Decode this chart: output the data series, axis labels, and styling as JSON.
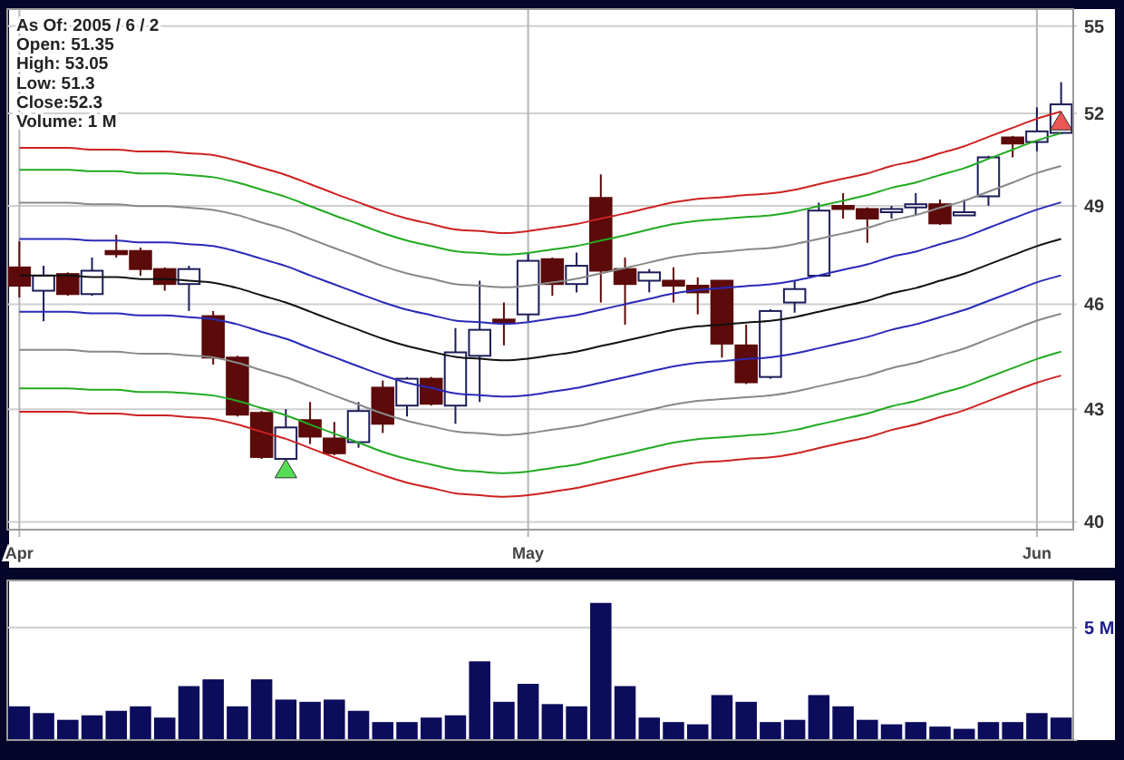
{
  "chart_data": [
    {
      "type": "candlestick",
      "log": "y",
      "grid": true,
      "annotations": [
        "As Of: 2005 / 6 / 2",
        "Open: 51.35",
        "High: 53.05",
        "Low: 51.3",
        "Close:52.3",
        "Volume: 1 M"
      ],
      "categories": [
        "Apr",
        null,
        null,
        null,
        null,
        null,
        null,
        null,
        null,
        null,
        null,
        null,
        null,
        null,
        null,
        null,
        null,
        null,
        null,
        null,
        null,
        "May",
        null,
        null,
        null,
        null,
        null,
        null,
        null,
        null,
        null,
        null,
        null,
        null,
        null,
        null,
        null,
        null,
        null,
        null,
        null,
        null,
        "Jun",
        null
      ],
      "ylim": [
        39.8,
        55.6
      ],
      "yticks": [
        40,
        43,
        46,
        49,
        52,
        55
      ],
      "ohlc": [
        [
          47.1,
          47.9,
          46.2,
          46.55
        ],
        [
          46.4,
          47.15,
          45.5,
          46.85
        ],
        [
          46.9,
          46.95,
          46.25,
          46.3
        ],
        [
          46.3,
          47.4,
          46.25,
          47.0
        ],
        [
          47.6,
          48.1,
          47.4,
          47.5
        ],
        [
          47.6,
          47.7,
          46.85,
          47.05
        ],
        [
          47.05,
          47.1,
          46.4,
          46.6
        ],
        [
          46.6,
          47.15,
          45.8,
          47.05
        ],
        [
          45.65,
          45.8,
          44.25,
          44.45
        ],
        [
          44.45,
          44.5,
          42.8,
          42.85
        ],
        [
          42.9,
          42.95,
          41.65,
          41.7
        ],
        [
          41.65,
          43.0,
          41.6,
          42.5
        ],
        [
          42.7,
          43.2,
          42.05,
          42.25
        ],
        [
          42.2,
          42.65,
          41.75,
          41.8
        ],
        [
          42.1,
          43.2,
          41.95,
          42.95
        ],
        [
          43.6,
          43.8,
          42.35,
          42.6
        ],
        [
          43.1,
          43.9,
          42.8,
          43.85
        ],
        [
          43.85,
          43.9,
          43.1,
          43.15
        ],
        [
          43.1,
          45.3,
          42.6,
          44.6
        ],
        [
          44.5,
          46.7,
          43.2,
          45.25
        ],
        [
          45.55,
          46.05,
          44.8,
          45.45
        ],
        [
          45.7,
          47.55,
          45.5,
          47.3
        ],
        [
          47.35,
          47.4,
          46.25,
          46.6
        ],
        [
          46.6,
          47.55,
          46.35,
          47.15
        ],
        [
          49.25,
          50.0,
          46.05,
          47.0
        ],
        [
          47.05,
          47.4,
          45.4,
          46.6
        ],
        [
          46.7,
          47.05,
          46.35,
          46.95
        ],
        [
          46.7,
          47.1,
          46.05,
          46.55
        ],
        [
          46.55,
          46.8,
          45.7,
          46.35
        ],
        [
          46.7,
          46.7,
          44.45,
          44.85
        ],
        [
          44.8,
          45.4,
          43.7,
          43.75
        ],
        [
          43.9,
          45.85,
          43.85,
          45.8
        ],
        [
          46.05,
          46.7,
          45.75,
          46.45
        ],
        [
          46.85,
          49.1,
          46.85,
          48.85
        ],
        [
          49.0,
          49.4,
          48.6,
          48.9
        ],
        [
          48.9,
          48.95,
          47.85,
          48.6
        ],
        [
          48.8,
          49.0,
          48.6,
          48.9
        ],
        [
          48.95,
          49.4,
          48.7,
          49.05
        ],
        [
          49.05,
          49.2,
          48.4,
          48.45
        ],
        [
          48.7,
          49.2,
          48.7,
          48.8
        ],
        [
          49.3,
          50.6,
          49.0,
          50.55
        ],
        [
          51.2,
          51.25,
          50.55,
          51.0
        ],
        [
          51.05,
          52.2,
          50.75,
          51.4
        ],
        [
          51.35,
          53.05,
          51.3,
          52.3
        ]
      ],
      "colors": [
        "#5c0a0a",
        "#ffffff",
        "#5c0a0a",
        "#ffffff",
        "#5c0a0a",
        "#5c0a0a",
        "#5c0a0a",
        "#ffffff",
        "#5c0a0a",
        "#5c0a0a",
        "#5c0a0a",
        "#ffffff",
        "#5c0a0a",
        "#5c0a0a",
        "#ffffff",
        "#5c0a0a",
        "#ffffff",
        "#5c0a0a",
        "#ffffff",
        "#ffffff",
        "#5c0a0a",
        "#ffffff",
        "#5c0a0a",
        "#ffffff",
        "#5c0a0a",
        "#5c0a0a",
        "#ffffff",
        "#5c0a0a",
        "#5c0a0a",
        "#5c0a0a",
        "#5c0a0a",
        "#ffffff",
        "#ffffff",
        "#ffffff",
        "#5c0a0a",
        "#5c0a0a",
        "#ffffff",
        "#ffffff",
        "#5c0a0a",
        "#ffffff",
        "#ffffff",
        "#5c0a0a",
        "#ffffff",
        "#ffffff"
      ],
      "series": [
        {
          "type": "line",
          "color": "#cc2222",
          "values": [
            50.86,
            50.86,
            50.86,
            50.8,
            50.8,
            50.74,
            50.74,
            50.68,
            50.62,
            50.44,
            50.21,
            49.98,
            49.69,
            49.39,
            49.11,
            48.83,
            48.6,
            48.43,
            48.26,
            48.21,
            48.15,
            48.21,
            48.32,
            48.43,
            48.6,
            48.76,
            48.94,
            49.11,
            49.22,
            49.27,
            49.34,
            49.39,
            49.51,
            49.69,
            49.86,
            50.03,
            50.27,
            50.44,
            50.68,
            50.91,
            51.22,
            51.52,
            51.82,
            52.06
          ]
        },
        {
          "type": "line",
          "color": "#22aa22",
          "values": [
            50.15,
            50.15,
            50.15,
            50.1,
            50.1,
            50.03,
            50.03,
            49.98,
            49.91,
            49.74,
            49.51,
            49.28,
            48.99,
            48.7,
            48.43,
            48.15,
            47.92,
            47.75,
            47.59,
            47.54,
            47.49,
            47.54,
            47.65,
            47.75,
            47.92,
            48.08,
            48.26,
            48.43,
            48.53,
            48.59,
            48.65,
            48.7,
            48.82,
            48.99,
            49.16,
            49.34,
            49.57,
            49.74,
            49.98,
            50.2,
            50.5,
            50.8,
            51.1,
            51.34
          ]
        },
        {
          "type": "line",
          "color": "#888888",
          "values": [
            49.1,
            49.1,
            49.1,
            49.05,
            49.05,
            48.99,
            48.99,
            48.94,
            48.87,
            48.71,
            48.48,
            48.26,
            47.97,
            47.69,
            47.42,
            47.14,
            46.92,
            46.76,
            46.6,
            46.55,
            46.5,
            46.55,
            46.65,
            46.76,
            46.92,
            47.08,
            47.25,
            47.42,
            47.52,
            47.57,
            47.64,
            47.69,
            47.81,
            47.97,
            48.14,
            48.31,
            48.54,
            48.71,
            48.94,
            49.16,
            49.45,
            49.74,
            50.04,
            50.27
          ]
        },
        {
          "type": "line",
          "color": "#2a2ab8",
          "values": [
            47.97,
            47.97,
            47.97,
            47.92,
            47.92,
            47.86,
            47.86,
            47.81,
            47.75,
            47.58,
            47.36,
            47.14,
            46.86,
            46.59,
            46.32,
            46.06,
            45.84,
            45.68,
            45.52,
            45.47,
            45.42,
            45.47,
            45.58,
            45.68,
            45.84,
            46.0,
            46.16,
            46.32,
            46.42,
            46.48,
            46.54,
            46.59,
            46.7,
            46.86,
            47.03,
            47.19,
            47.42,
            47.58,
            47.81,
            48.02,
            48.31,
            48.6,
            48.88,
            49.11
          ]
        },
        {
          "type": "line",
          "color": "#111111",
          "values": [
            46.86,
            46.86,
            46.86,
            46.81,
            46.81,
            46.75,
            46.75,
            46.7,
            46.64,
            46.48,
            46.26,
            46.05,
            45.78,
            45.51,
            45.25,
            44.99,
            44.78,
            44.62,
            44.47,
            44.42,
            44.37,
            44.42,
            44.52,
            44.62,
            44.78,
            44.93,
            45.09,
            45.25,
            45.35,
            45.4,
            45.46,
            45.51,
            45.62,
            45.78,
            45.94,
            46.1,
            46.32,
            46.48,
            46.7,
            46.91,
            47.19,
            47.47,
            47.75,
            47.97
          ]
        },
        {
          "type": "line",
          "color": "#2a2ab8",
          "values": [
            45.78,
            45.78,
            45.78,
            45.73,
            45.73,
            45.67,
            45.67,
            45.62,
            45.56,
            45.41,
            45.19,
            44.99,
            44.72,
            44.46,
            44.2,
            43.95,
            43.74,
            43.59,
            43.44,
            43.39,
            43.35,
            43.39,
            43.49,
            43.59,
            43.74,
            43.89,
            44.05,
            44.2,
            44.3,
            44.35,
            44.41,
            44.46,
            44.57,
            44.72,
            44.88,
            45.04,
            45.25,
            45.41,
            45.62,
            45.83,
            46.1,
            46.37,
            46.65,
            46.86
          ]
        },
        {
          "type": "line",
          "color": "#888888",
          "values": [
            44.67,
            44.67,
            44.67,
            44.62,
            44.62,
            44.56,
            44.56,
            44.51,
            44.46,
            44.3,
            44.09,
            43.89,
            43.64,
            43.38,
            43.13,
            42.88,
            42.68,
            42.53,
            42.39,
            42.34,
            42.29,
            42.34,
            42.44,
            42.53,
            42.68,
            42.83,
            42.98,
            43.13,
            43.23,
            43.28,
            43.33,
            43.38,
            43.49,
            43.64,
            43.79,
            43.94,
            44.15,
            44.3,
            44.51,
            44.71,
            44.98,
            45.25,
            45.52,
            45.72
          ]
        },
        {
          "type": "line",
          "color": "#22aa22",
          "values": [
            43.58,
            43.58,
            43.58,
            43.54,
            43.54,
            43.48,
            43.48,
            43.44,
            43.38,
            43.23,
            43.03,
            42.83,
            42.58,
            42.33,
            42.09,
            41.84,
            41.65,
            41.5,
            41.36,
            41.31,
            41.27,
            41.31,
            41.41,
            41.5,
            41.65,
            41.79,
            41.94,
            42.09,
            42.18,
            42.23,
            42.28,
            42.33,
            42.43,
            42.58,
            42.73,
            42.88,
            43.08,
            43.23,
            43.44,
            43.63,
            43.89,
            44.15,
            44.41,
            44.62
          ]
        },
        {
          "type": "line",
          "color": "#cc2222",
          "values": [
            42.93,
            42.93,
            42.93,
            42.88,
            42.88,
            42.83,
            42.83,
            42.78,
            42.73,
            42.58,
            42.38,
            42.19,
            41.94,
            41.69,
            41.45,
            41.22,
            41.02,
            40.88,
            40.74,
            40.69,
            40.65,
            40.69,
            40.78,
            40.88,
            41.02,
            41.16,
            41.31,
            41.45,
            41.55,
            41.59,
            41.65,
            41.69,
            41.79,
            41.94,
            42.09,
            42.23,
            42.43,
            42.58,
            42.78,
            42.97,
            43.23,
            43.49,
            43.74,
            43.94
          ]
        },
        {
          "type": "scatter",
          "marker": "triangle",
          "color": "#55dd55",
          "values": [
            null,
            null,
            null,
            null,
            null,
            null,
            null,
            null,
            null,
            null,
            null,
            41.35,
            null,
            null,
            null,
            null,
            null,
            null,
            null,
            null,
            null,
            null,
            null,
            null,
            null,
            null,
            null,
            null,
            null,
            null,
            null,
            null,
            null,
            null,
            null,
            null,
            null,
            null,
            null,
            null,
            null,
            null,
            null,
            null
          ]
        },
        {
          "type": "scatter",
          "marker": "triangle",
          "color": "#ee5555",
          "values": [
            null,
            null,
            null,
            null,
            null,
            null,
            null,
            null,
            null,
            null,
            null,
            null,
            null,
            null,
            null,
            null,
            null,
            null,
            null,
            null,
            null,
            null,
            null,
            null,
            null,
            null,
            null,
            null,
            null,
            null,
            null,
            null,
            null,
            null,
            null,
            null,
            null,
            null,
            null,
            null,
            null,
            null,
            null,
            51.7
          ]
        }
      ]
    },
    {
      "type": "bar",
      "grid": "y",
      "tick_labels": "y",
      "color": "#0c0c5c",
      "categories": [
        null,
        null,
        null,
        null,
        null,
        null,
        null,
        null,
        null,
        null,
        null,
        null,
        null,
        null,
        null,
        null,
        null,
        null,
        null,
        null,
        null,
        null,
        null,
        null,
        null,
        null,
        null,
        null,
        null,
        null,
        null,
        null,
        null,
        null,
        null,
        null,
        null,
        null,
        null,
        null,
        null,
        null,
        null,
        null
      ],
      "ylim": [
        0,
        7.1
      ],
      "yticks": [
        {
          "value": 0,
          "label": null
        },
        {
          "value": 5,
          "label": "5 M"
        }
      ],
      "values": [
        1.5,
        1.2,
        0.9,
        1.1,
        1.3,
        1.5,
        1.0,
        2.4,
        2.7,
        1.5,
        2.7,
        1.8,
        1.7,
        1.8,
        1.3,
        0.8,
        0.8,
        1.0,
        1.1,
        3.5,
        1.7,
        2.5,
        1.6,
        1.5,
        6.1,
        2.4,
        1.0,
        0.8,
        0.7,
        2.0,
        1.7,
        0.8,
        0.9,
        2.0,
        1.5,
        0.9,
        0.7,
        0.8,
        0.6,
        0.5,
        0.8,
        0.8,
        1.2,
        1.0
      ]
    }
  ]
}
